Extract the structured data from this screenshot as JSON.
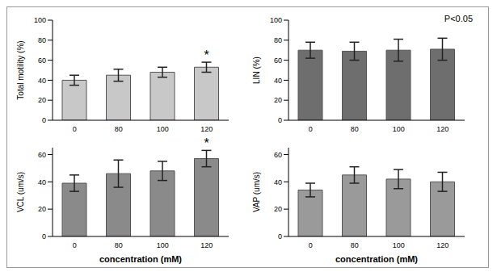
{
  "chart_data": [
    {
      "type": "bar",
      "y_label": "Total motility (%)",
      "categories": [
        "0",
        "80",
        "100",
        "120"
      ],
      "values": [
        40,
        45,
        48,
        53
      ],
      "errors": [
        5,
        6,
        5,
        5
      ],
      "color": "#c8c8c8",
      "ylim": [
        0,
        100
      ],
      "yticks": [
        0,
        20,
        40,
        60,
        80,
        100
      ],
      "annotations": [
        {
          "x": "120",
          "text": "*"
        }
      ]
    },
    {
      "type": "bar",
      "y_label": "LIN (%)",
      "categories": [
        "0",
        "80",
        "100",
        "120"
      ],
      "values": [
        70,
        69,
        70,
        71
      ],
      "errors": [
        8,
        9,
        11,
        11
      ],
      "color": "#6e6e6e",
      "ylim": [
        0,
        100
      ],
      "yticks": [
        0,
        20,
        40,
        60,
        80,
        100
      ],
      "annotations": [
        {
          "text": "P<0.05"
        }
      ]
    },
    {
      "type": "bar",
      "y_label": "VCL (um/s)",
      "x_label": "concentration (mM)",
      "categories": [
        "0",
        "80",
        "100",
        "120"
      ],
      "values": [
        39,
        46,
        48,
        57
      ],
      "errors": [
        6,
        10,
        7,
        6
      ],
      "color": "#8a8a8a",
      "ylim": [
        0,
        65
      ],
      "yticks": [
        0,
        20,
        40,
        60
      ],
      "annotations": [
        {
          "x": "120",
          "text": "*"
        }
      ]
    },
    {
      "type": "bar",
      "y_label": "VAP (um/s)",
      "x_label": "concentration (mM)",
      "categories": [
        "0",
        "80",
        "100",
        "120"
      ],
      "values": [
        34,
        45,
        42,
        40
      ],
      "errors": [
        5,
        6,
        7,
        7
      ],
      "color": "#9a9a9a",
      "ylim": [
        0,
        65
      ],
      "yticks": [
        0,
        20,
        40,
        60
      ]
    }
  ]
}
